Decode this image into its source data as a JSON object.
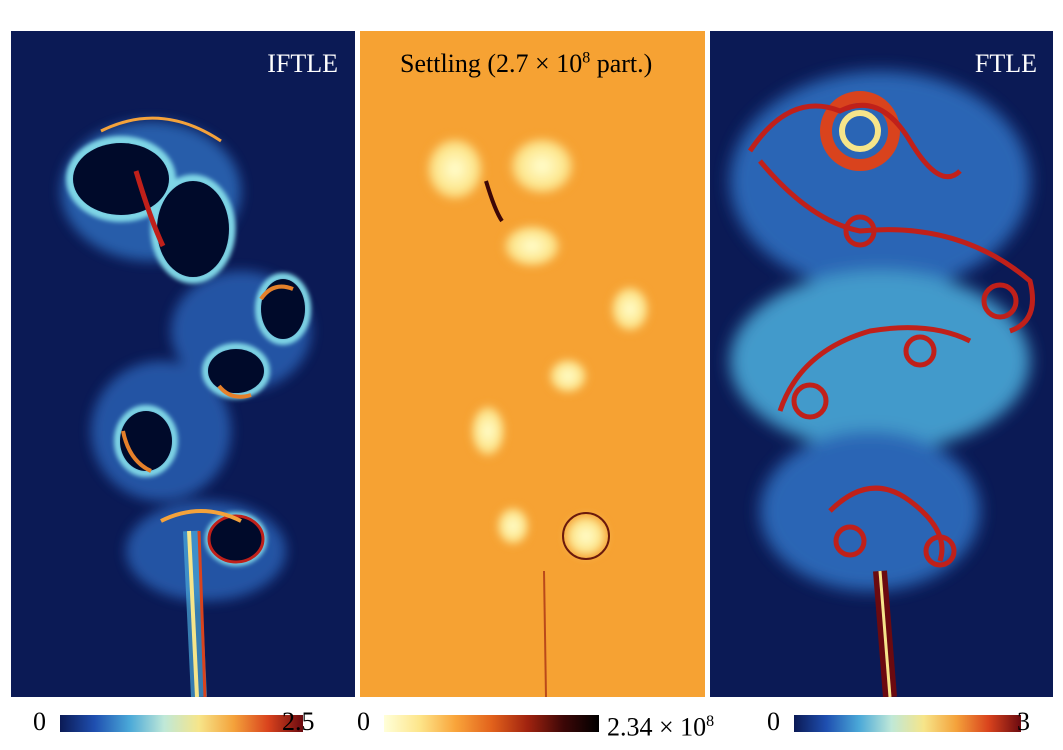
{
  "panels": [
    {
      "label": "IFTLE",
      "label_color": "#ffffff"
    },
    {
      "label_prefix": "Settling (2.7 × 10",
      "label_sup": "8",
      "label_suffix": " part.)",
      "label_color": "#000000"
    },
    {
      "label": "FTLE",
      "label_color": "#ffffff"
    }
  ],
  "colorbars": [
    {
      "min": "0",
      "max": "2.5"
    },
    {
      "min": "0",
      "max_prefix": "2.34 × 10",
      "max_sup": "8"
    },
    {
      "min": "0",
      "max": "3"
    }
  ],
  "colors": {
    "field_dark_blue": "#0b1a55",
    "field_orange": "#f6a233",
    "ridge_red": "#c0201a",
    "cream": "#ffffc0"
  }
}
